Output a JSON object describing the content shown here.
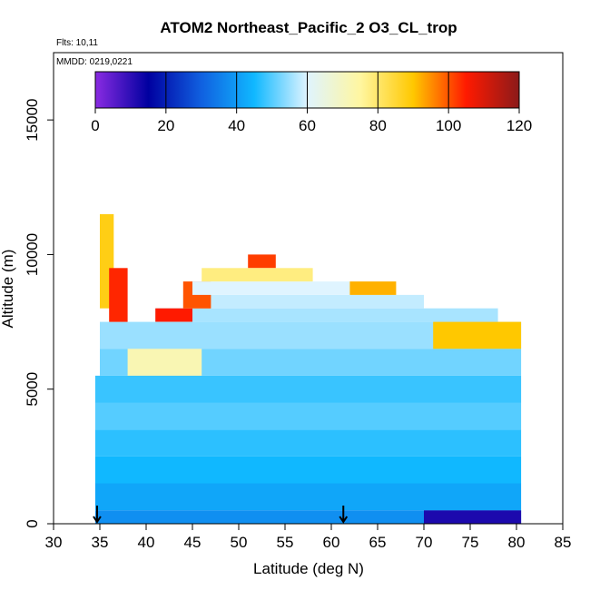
{
  "title": "ATOM2 Northeast_Pacific_2 O3_CL_trop",
  "flights_label": "Flts: 10,11",
  "mmdd_label": "MMDD: 0219,0221",
  "xlabel": "Latitude (deg N)",
  "ylabel": "Altitude (m)",
  "colors": {
    "colorbar_stops": [
      "#8a2be2",
      "#0000a0",
      "#1060e0",
      "#10b8ff",
      "#dff4ff",
      "#fff6a0",
      "#ffc800",
      "#ff1a00",
      "#8b1a1a"
    ]
  },
  "chart_data": {
    "type": "heatmap",
    "title": "ATOM2 Northeast_Pacific_2 O3_CL_trop",
    "xlabel": "Latitude (deg N)",
    "ylabel": "Altitude (m)",
    "xlim": [
      30,
      85
    ],
    "ylim": [
      0,
      17500
    ],
    "xticks": [
      30,
      35,
      40,
      45,
      50,
      55,
      60,
      65,
      70,
      75,
      80,
      85
    ],
    "yticks": [
      0,
      5000,
      10000,
      15000
    ],
    "colorbar": {
      "min": 0,
      "max": 120,
      "ticks": [
        0,
        20,
        40,
        60,
        80,
        100,
        120
      ]
    },
    "grid": false,
    "arrows_at_latitude": [
      34.7,
      61.3
    ],
    "segments": [
      {
        "lat": [
          34.5,
          80.5
        ],
        "alt": [
          0,
          500
        ],
        "value": 38
      },
      {
        "lat": [
          70.0,
          80.5
        ],
        "alt": [
          0,
          500
        ],
        "value": 12
      },
      {
        "lat": [
          34.5,
          80.5
        ],
        "alt": [
          500,
          1500
        ],
        "value": 42
      },
      {
        "lat": [
          34.5,
          80.5
        ],
        "alt": [
          1500,
          2500
        ],
        "value": 45
      },
      {
        "lat": [
          34.5,
          80.5
        ],
        "alt": [
          2500,
          3500
        ],
        "value": 47
      },
      {
        "lat": [
          34.5,
          80.5
        ],
        "alt": [
          3500,
          4500
        ],
        "value": 50
      },
      {
        "lat": [
          34.5,
          80.5
        ],
        "alt": [
          4500,
          5500
        ],
        "value": 48
      },
      {
        "lat": [
          35.0,
          80.5
        ],
        "alt": [
          5500,
          6500
        ],
        "value": 52
      },
      {
        "lat": [
          38.0,
          46.0
        ],
        "alt": [
          5500,
          7000
        ],
        "value": 72
      },
      {
        "lat": [
          35.0,
          80.5
        ],
        "alt": [
          6500,
          7500
        ],
        "value": 55
      },
      {
        "lat": [
          71.0,
          80.5
        ],
        "alt": [
          6500,
          7500
        ],
        "value": 90
      },
      {
        "lat": [
          41.0,
          78.0
        ],
        "alt": [
          7500,
          8000
        ],
        "value": 56
      },
      {
        "lat": [
          41.0,
          45.0
        ],
        "alt": [
          7500,
          8000
        ],
        "value": 105
      },
      {
        "lat": [
          44.0,
          70.0
        ],
        "alt": [
          8000,
          8500
        ],
        "value": 58
      },
      {
        "lat": [
          44.0,
          47.0
        ],
        "alt": [
          8000,
          9000
        ],
        "value": 100
      },
      {
        "lat": [
          45.0,
          62.0
        ],
        "alt": [
          8500,
          9000
        ],
        "value": 60
      },
      {
        "lat": [
          62.0,
          67.0
        ],
        "alt": [
          8500,
          9000
        ],
        "value": 92
      },
      {
        "lat": [
          46.0,
          58.0
        ],
        "alt": [
          9000,
          9500
        ],
        "value": 78
      },
      {
        "lat": [
          51.0,
          54.0
        ],
        "alt": [
          9500,
          10000
        ],
        "value": 102
      },
      {
        "lat": [
          35.0,
          36.5
        ],
        "alt": [
          8000,
          11500
        ],
        "value": 88
      },
      {
        "lat": [
          36.0,
          38.0
        ],
        "alt": [
          7500,
          9500
        ],
        "value": 104
      }
    ]
  }
}
